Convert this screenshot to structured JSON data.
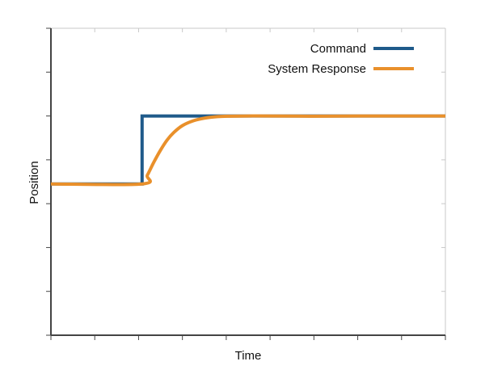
{
  "chart_data": {
    "type": "line",
    "title": "",
    "xlabel": "Time",
    "ylabel": "Position",
    "xlim": [
      0,
      9
    ],
    "ylim": [
      0,
      7
    ],
    "x_tick_count": 10,
    "y_tick_count": 8,
    "tick_labels_shown": false,
    "grid": false,
    "legend": "top-right",
    "series": [
      {
        "name": "Command",
        "color": "#1f5a8a",
        "x": [
          0,
          2.08,
          2.08,
          9
        ],
        "y": [
          3.45,
          3.45,
          5.0,
          5.0
        ]
      },
      {
        "name": "System Response",
        "color": "#e9902b",
        "x": [
          0,
          2.08,
          2.2,
          2.35,
          2.5,
          2.65,
          2.8,
          3.0,
          3.25,
          3.5,
          3.8,
          4.1,
          4.5,
          5.0,
          6.0,
          7.0,
          8.0,
          9.0
        ],
        "y": [
          3.45,
          3.45,
          3.65,
          3.95,
          4.22,
          4.45,
          4.62,
          4.78,
          4.89,
          4.95,
          4.985,
          4.995,
          5.0,
          5.0,
          4.995,
          5.0,
          5.0,
          5.0
        ]
      }
    ]
  }
}
